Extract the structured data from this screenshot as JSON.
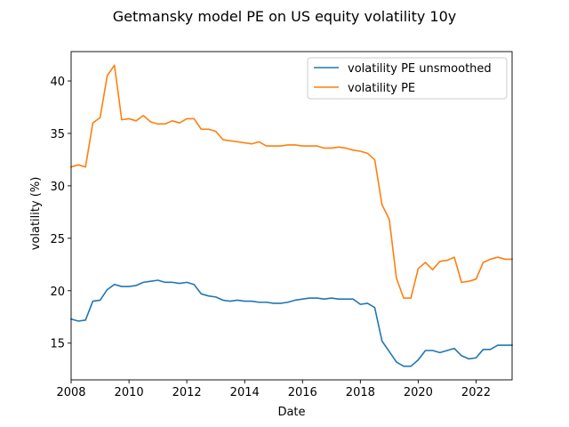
{
  "chart_data": {
    "type": "line",
    "title": "Getmansky model PE on US equity volatility 10y",
    "xlabel": "Date",
    "ylabel": "volatility (%)",
    "xlim": [
      "2008-01-01",
      "2023-04-01"
    ],
    "ylim": [
      11.5,
      42.8
    ],
    "x_ticks": [
      "2008",
      "2010",
      "2012",
      "2014",
      "2016",
      "2018",
      "2020",
      "2022"
    ],
    "y_ticks": [
      15,
      20,
      25,
      30,
      35,
      40
    ],
    "grid": false,
    "legend_position": "top-right",
    "x": [
      "2008-01-01",
      "2008-04-01",
      "2008-07-01",
      "2008-10-01",
      "2009-01-01",
      "2009-04-01",
      "2009-07-01",
      "2009-10-01",
      "2010-01-01",
      "2010-04-01",
      "2010-07-01",
      "2010-10-01",
      "2011-01-01",
      "2011-04-01",
      "2011-07-01",
      "2011-10-01",
      "2012-01-01",
      "2012-04-01",
      "2012-07-01",
      "2012-10-01",
      "2013-01-01",
      "2013-04-01",
      "2013-07-01",
      "2013-10-01",
      "2014-01-01",
      "2014-04-01",
      "2014-07-01",
      "2014-10-01",
      "2015-01-01",
      "2015-04-01",
      "2015-07-01",
      "2015-10-01",
      "2016-01-01",
      "2016-04-01",
      "2016-07-01",
      "2016-10-01",
      "2017-01-01",
      "2017-04-01",
      "2017-07-01",
      "2017-10-01",
      "2018-01-01",
      "2018-04-01",
      "2018-07-01",
      "2018-10-01",
      "2019-01-01",
      "2019-04-01",
      "2019-07-01",
      "2019-10-01",
      "2020-01-01",
      "2020-04-01",
      "2020-07-01",
      "2020-10-01",
      "2021-01-01",
      "2021-04-01",
      "2021-07-01",
      "2021-10-01",
      "2022-01-01",
      "2022-04-01",
      "2022-07-01",
      "2022-10-01",
      "2023-01-01",
      "2023-04-01"
    ],
    "series": [
      {
        "name": "volatility PE unsmoothed",
        "color": "#1f77b4",
        "values": [
          17.3,
          17.1,
          17.2,
          19.0,
          19.1,
          20.1,
          20.6,
          20.4,
          20.4,
          20.5,
          20.8,
          20.9,
          21.0,
          20.8,
          20.8,
          20.7,
          20.8,
          20.6,
          19.7,
          19.5,
          19.4,
          19.1,
          19.0,
          19.1,
          19.0,
          19.0,
          18.9,
          18.9,
          18.8,
          18.8,
          18.9,
          19.1,
          19.2,
          19.3,
          19.3,
          19.2,
          19.3,
          19.2,
          19.2,
          19.2,
          18.7,
          18.8,
          18.4,
          15.2,
          14.2,
          13.2,
          12.8,
          12.8,
          13.4,
          14.3,
          14.3,
          14.1,
          14.3,
          14.5,
          13.8,
          13.5,
          13.6,
          14.4,
          14.4,
          14.8,
          14.8,
          14.8
        ]
      },
      {
        "name": "volatility PE",
        "color": "#ff7f0e",
        "values": [
          31.8,
          32.0,
          31.8,
          36.0,
          36.5,
          40.5,
          41.5,
          36.3,
          36.4,
          36.2,
          36.7,
          36.1,
          35.9,
          35.9,
          36.2,
          36.0,
          36.4,
          36.4,
          35.4,
          35.4,
          35.2,
          34.4,
          34.3,
          34.2,
          34.1,
          34.0,
          34.2,
          33.8,
          33.8,
          33.8,
          33.9,
          33.9,
          33.8,
          33.8,
          33.8,
          33.6,
          33.6,
          33.7,
          33.6,
          33.4,
          33.3,
          33.1,
          32.5,
          28.2,
          26.8,
          21.2,
          19.3,
          19.3,
          22.1,
          22.7,
          22.0,
          22.8,
          22.9,
          23.2,
          20.8,
          20.9,
          21.1,
          22.7,
          23.0,
          23.2,
          23.0,
          23.0
        ]
      }
    ]
  }
}
